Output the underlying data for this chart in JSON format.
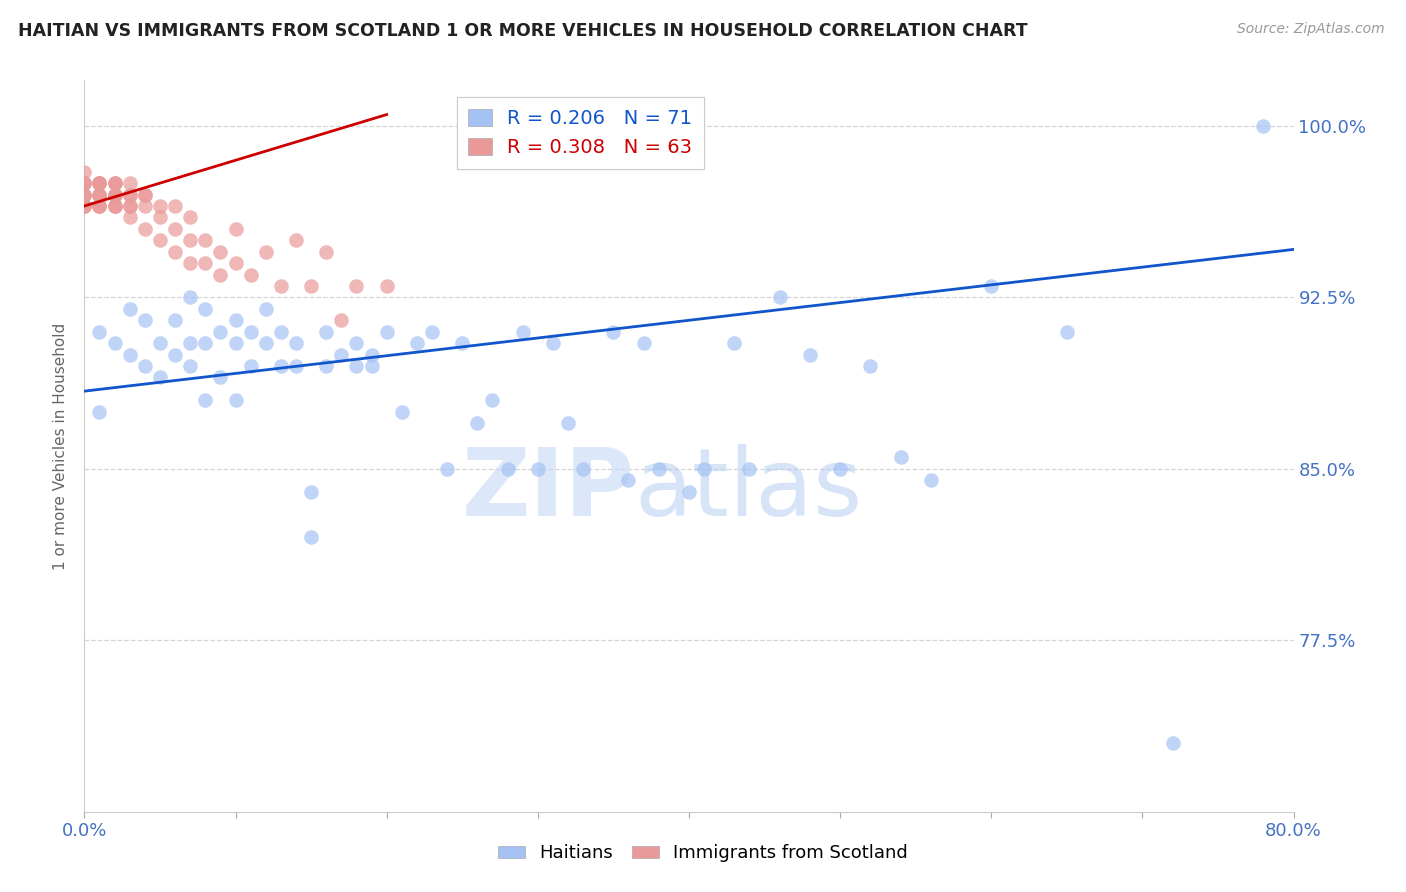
{
  "title": "HAITIAN VS IMMIGRANTS FROM SCOTLAND 1 OR MORE VEHICLES IN HOUSEHOLD CORRELATION CHART",
  "source": "Source: ZipAtlas.com",
  "ylabel": "1 or more Vehicles in Household",
  "xlim": [
    0.0,
    0.8
  ],
  "ylim": [
    0.7,
    1.02
  ],
  "yticks": [
    0.775,
    0.85,
    0.925,
    1.0
  ],
  "yticklabels": [
    "77.5%",
    "85.0%",
    "92.5%",
    "100.0%"
  ],
  "legend_label1": "Haitians",
  "legend_label2": "Immigrants from Scotland",
  "blue_color": "#a4c2f4",
  "pink_color": "#ea9999",
  "blue_line_color": "#1155cc",
  "pink_line_color": "#cc0000",
  "axis_color": "#4472c4",
  "watermark_zip": "ZIP",
  "watermark_atlas": "atlas",
  "blue_R": 0.206,
  "pink_R": 0.308,
  "blue_N": 71,
  "pink_N": 63,
  "blue_scatter_x": [
    0.01,
    0.01,
    0.02,
    0.03,
    0.03,
    0.04,
    0.04,
    0.05,
    0.05,
    0.06,
    0.06,
    0.07,
    0.07,
    0.07,
    0.08,
    0.08,
    0.08,
    0.09,
    0.09,
    0.1,
    0.1,
    0.1,
    0.11,
    0.11,
    0.12,
    0.12,
    0.13,
    0.13,
    0.14,
    0.14,
    0.15,
    0.15,
    0.16,
    0.16,
    0.17,
    0.18,
    0.18,
    0.19,
    0.19,
    0.2,
    0.21,
    0.22,
    0.23,
    0.24,
    0.25,
    0.26,
    0.27,
    0.28,
    0.29,
    0.3,
    0.31,
    0.32,
    0.33,
    0.35,
    0.36,
    0.37,
    0.38,
    0.4,
    0.41,
    0.43,
    0.44,
    0.46,
    0.48,
    0.5,
    0.52,
    0.54,
    0.56,
    0.6,
    0.65,
    0.72,
    0.78
  ],
  "blue_scatter_y": [
    0.875,
    0.91,
    0.905,
    0.9,
    0.92,
    0.895,
    0.915,
    0.89,
    0.905,
    0.9,
    0.915,
    0.895,
    0.905,
    0.925,
    0.88,
    0.905,
    0.92,
    0.89,
    0.91,
    0.905,
    0.88,
    0.915,
    0.895,
    0.91,
    0.905,
    0.92,
    0.895,
    0.91,
    0.905,
    0.895,
    0.82,
    0.84,
    0.91,
    0.895,
    0.9,
    0.905,
    0.895,
    0.9,
    0.895,
    0.91,
    0.875,
    0.905,
    0.91,
    0.85,
    0.905,
    0.87,
    0.88,
    0.85,
    0.91,
    0.85,
    0.905,
    0.87,
    0.85,
    0.91,
    0.845,
    0.905,
    0.85,
    0.84,
    0.85,
    0.905,
    0.85,
    0.925,
    0.9,
    0.85,
    0.895,
    0.855,
    0.845,
    0.93,
    0.91,
    0.73,
    1.0
  ],
  "pink_scatter_x": [
    0.0,
    0.0,
    0.0,
    0.0,
    0.0,
    0.0,
    0.0,
    0.0,
    0.0,
    0.0,
    0.01,
    0.01,
    0.01,
    0.01,
    0.01,
    0.01,
    0.01,
    0.01,
    0.01,
    0.01,
    0.02,
    0.02,
    0.02,
    0.02,
    0.02,
    0.02,
    0.02,
    0.02,
    0.02,
    0.03,
    0.03,
    0.03,
    0.03,
    0.03,
    0.03,
    0.04,
    0.04,
    0.04,
    0.04,
    0.05,
    0.05,
    0.05,
    0.06,
    0.06,
    0.06,
    0.07,
    0.07,
    0.07,
    0.08,
    0.08,
    0.09,
    0.09,
    0.1,
    0.1,
    0.11,
    0.12,
    0.13,
    0.14,
    0.15,
    0.16,
    0.17,
    0.18,
    0.2
  ],
  "pink_scatter_y": [
    0.97,
    0.975,
    0.98,
    0.965,
    0.975,
    0.97,
    0.965,
    0.975,
    0.97,
    0.965,
    0.975,
    0.97,
    0.965,
    0.975,
    0.97,
    0.965,
    0.975,
    0.97,
    0.965,
    0.975,
    0.975,
    0.97,
    0.965,
    0.975,
    0.97,
    0.965,
    0.975,
    0.97,
    0.965,
    0.97,
    0.965,
    0.975,
    0.965,
    0.97,
    0.96,
    0.97,
    0.965,
    0.955,
    0.97,
    0.96,
    0.95,
    0.965,
    0.955,
    0.965,
    0.945,
    0.95,
    0.94,
    0.96,
    0.94,
    0.95,
    0.935,
    0.945,
    0.94,
    0.955,
    0.935,
    0.945,
    0.93,
    0.95,
    0.93,
    0.945,
    0.915,
    0.93,
    0.93
  ],
  "blue_trend_x": [
    0.0,
    0.8
  ],
  "blue_trend_y": [
    0.884,
    0.946
  ],
  "pink_trend_x": [
    0.0,
    0.2
  ],
  "pink_trend_y": [
    0.965,
    1.005
  ]
}
